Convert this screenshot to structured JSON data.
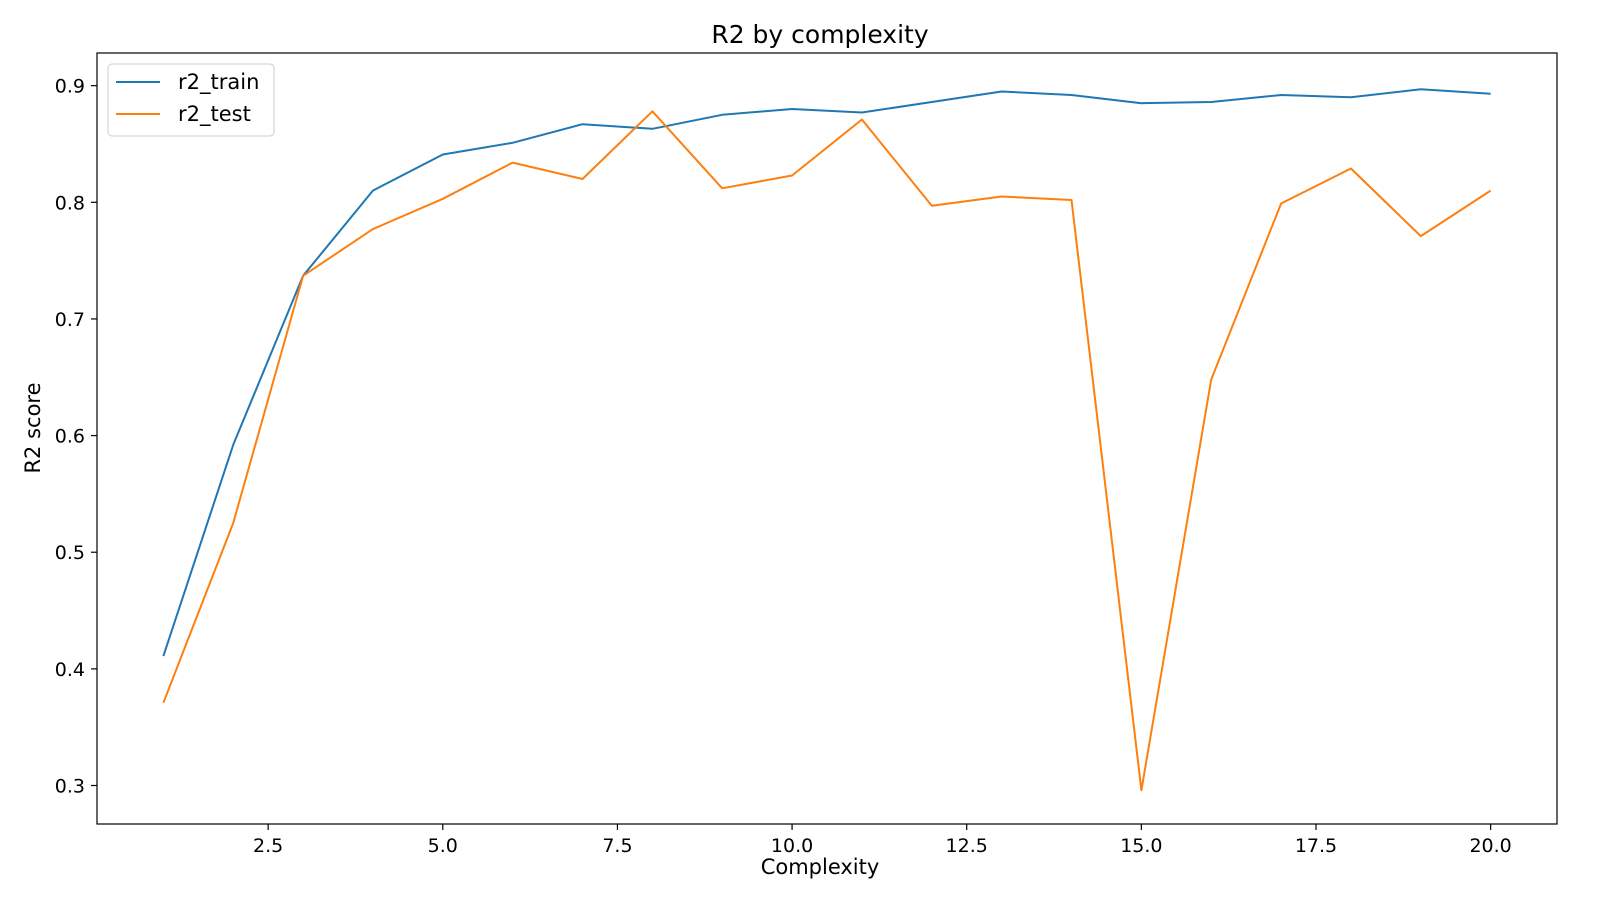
{
  "chart_data": {
    "type": "line",
    "title": "R2 by complexity",
    "xlabel": "Complexity",
    "ylabel": "R2 score",
    "x": [
      1,
      2,
      3,
      4,
      5,
      6,
      7,
      8,
      9,
      10,
      11,
      12,
      13,
      14,
      15,
      16,
      17,
      18,
      19,
      20
    ],
    "xlim": [
      0.05,
      20.95
    ],
    "ylim": [
      0.267,
      0.928
    ],
    "xticks": [
      2.5,
      5.0,
      7.5,
      10.0,
      12.5,
      15.0,
      17.5,
      20.0
    ],
    "xtick_labels": [
      "2.5",
      "5.0",
      "7.5",
      "10.0",
      "12.5",
      "15.0",
      "17.5",
      "20.0"
    ],
    "yticks": [
      0.3,
      0.4,
      0.5,
      0.6,
      0.7,
      0.8,
      0.9
    ],
    "ytick_labels": [
      "0.3",
      "0.4",
      "0.5",
      "0.6",
      "0.7",
      "0.8",
      "0.9"
    ],
    "grid": false,
    "legend_position": "top-left",
    "series": [
      {
        "name": "r2_train",
        "color": "#1f77b4",
        "values": [
          0.411,
          0.592,
          0.737,
          0.81,
          0.841,
          0.851,
          0.867,
          0.863,
          0.875,
          0.88,
          0.877,
          0.886,
          0.895,
          0.892,
          0.885,
          0.886,
          0.892,
          0.89,
          0.897,
          0.893
        ]
      },
      {
        "name": "r2_test",
        "color": "#ff7f0e",
        "values": [
          0.371,
          0.525,
          0.737,
          0.777,
          0.803,
          0.834,
          0.82,
          0.878,
          0.812,
          0.823,
          0.871,
          0.797,
          0.805,
          0.802,
          0.296,
          0.648,
          0.799,
          0.829,
          0.771,
          0.81
        ]
      }
    ]
  }
}
